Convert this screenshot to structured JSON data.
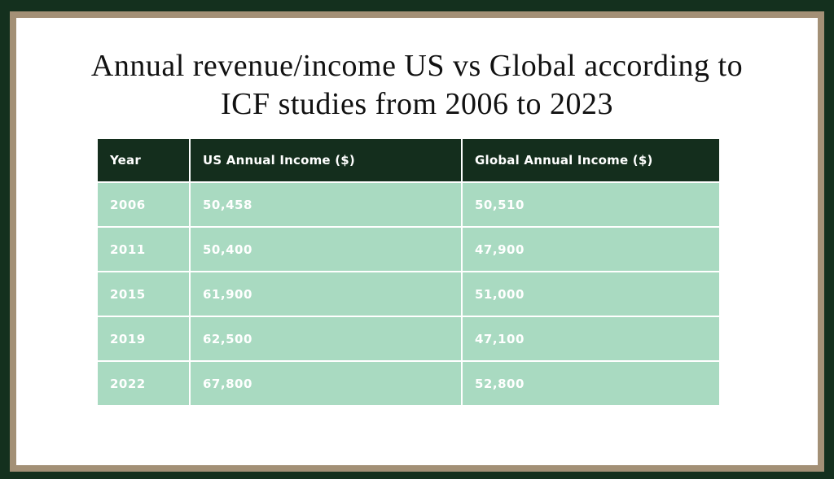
{
  "slide": {
    "title_line1": "Annual revenue/income US vs Global according to",
    "title_line2": "ICF studies from 2006 to 2023"
  },
  "colors": {
    "frame_outer": "#14301e",
    "frame_inner_border": "#a39076",
    "background": "#ffffff",
    "title_text": "#111111",
    "header_bg": "#142e1d",
    "header_text": "#ffffff",
    "row_bg": "#a9dac1",
    "row_text": "#ffffff"
  },
  "table": {
    "columns": [
      "Year",
      "US Annual Income ($)",
      "Global Annual Income ($)"
    ],
    "rows": [
      [
        "2006",
        "50,458",
        "50,510"
      ],
      [
        "2011",
        "50,400",
        "47,900"
      ],
      [
        "2015",
        "61,900",
        "51,000"
      ],
      [
        "2019",
        "62,500",
        "47,100"
      ],
      [
        "2022",
        "67,800",
        "52,800"
      ]
    ]
  },
  "chart_data": {
    "type": "table",
    "title": "Annual revenue/income US vs Global according to ICF studies from 2006 to 2023",
    "categories": [
      "2006",
      "2011",
      "2015",
      "2019",
      "2022"
    ],
    "series": [
      {
        "name": "US Annual Income ($)",
        "values": [
          50458,
          50400,
          61900,
          62500,
          67800
        ]
      },
      {
        "name": "Global Annual Income ($)",
        "values": [
          50510,
          47900,
          51000,
          47100,
          52800
        ]
      }
    ]
  }
}
